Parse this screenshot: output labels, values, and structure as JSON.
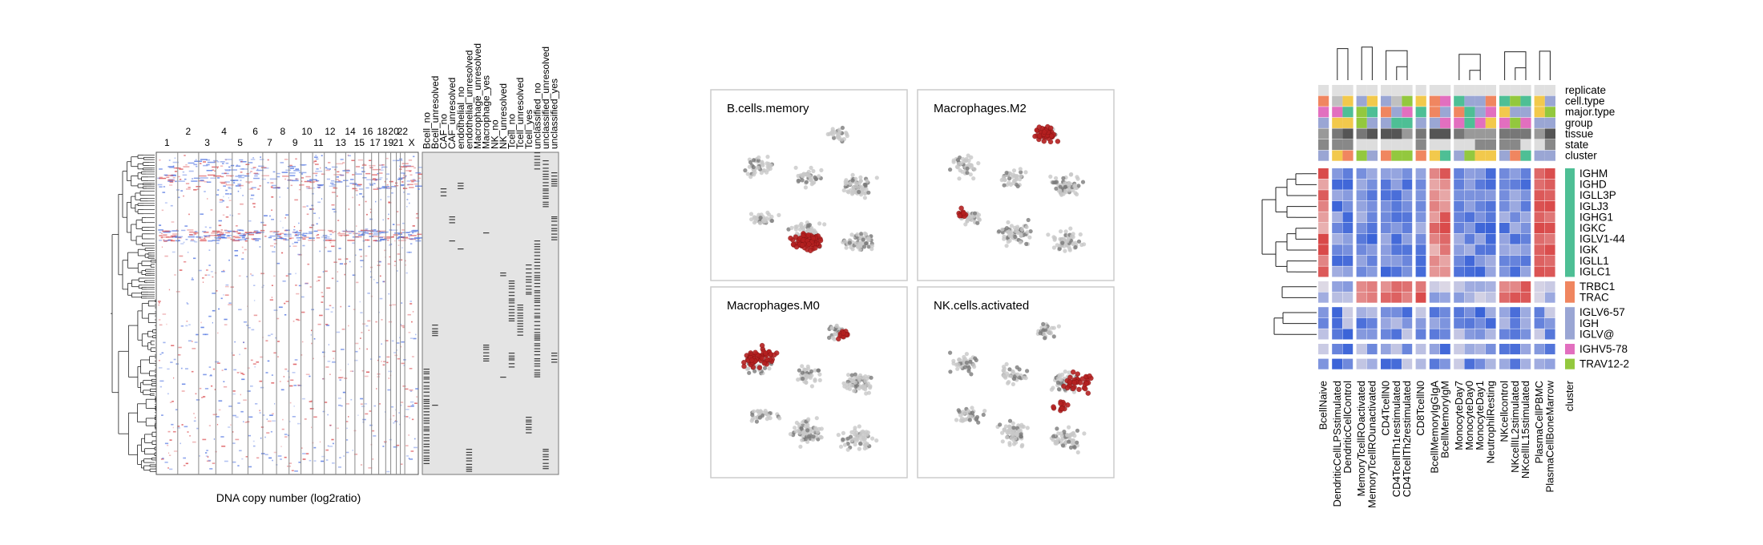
{
  "chart_data": [
    {
      "type": "heatmap",
      "xlabel": "DNA copy number  (log2ratio)",
      "chromosomes_odd": [
        "1",
        "3",
        "5",
        "7",
        "9",
        "11",
        "13",
        "15",
        "17",
        "19",
        "21"
      ],
      "chromosomes_even": [
        "2",
        "4",
        "6",
        "8",
        "10",
        "12",
        "14",
        "16",
        "18",
        "20",
        "22",
        "X"
      ],
      "chromosomes": [
        "1",
        "2",
        "3",
        "4",
        "5",
        "6",
        "7",
        "8",
        "9",
        "10",
        "11",
        "12",
        "13",
        "14",
        "15",
        "16",
        "17",
        "18",
        "19",
        "20",
        "21",
        "22",
        "X"
      ],
      "annotation_columns": [
        "Bcell_no",
        "Bcell_unresolved",
        "CAF_no",
        "CAF_unresolved",
        "endothelial_no",
        "endothelial_unresolved",
        "Macrophage_unresolved",
        "Macrophage_yes",
        "NK_no",
        "NK_unresolved",
        "Tcell_no",
        "Tcell_unresolved",
        "Tcell_yes",
        "unclassified_no",
        "unclassified_unresolved",
        "unclassified_yes"
      ],
      "colors": {
        "gain": "#d9474b",
        "loss": "#4a6fe0",
        "annotation_bg": "#e4e4e4",
        "annotation_mark": "#3a3a3a"
      }
    },
    {
      "type": "scatter",
      "panels": [
        {
          "title": "B.cells.memory"
        },
        {
          "title": "Macrophages.M2"
        },
        {
          "title": "Macrophages.M0"
        },
        {
          "title": "NK.cells.activated"
        }
      ],
      "colors": {
        "background_points": "#c8c8c8",
        "mid_points": "#7a7a7a",
        "highlight_points": "#b52020"
      }
    },
    {
      "type": "heatmap",
      "row_annotations": [
        "replicate",
        "cell.type",
        "major.type",
        "group",
        "tissue",
        "state",
        "cluster"
      ],
      "genes": [
        "IGHM",
        "IGHD",
        "IGLL3P",
        "IGLJ3",
        "IGHG1",
        "IGKC",
        "IGLV1-44",
        "IGK",
        "IGLL1",
        "IGLC1",
        "TRBC1",
        "TRAC",
        "IGLV6-57",
        "IGH",
        "IGLV@",
        "IGHV5-78",
        "TRAV12-2"
      ],
      "samples": [
        "BcellNaive",
        "DendriticCellLPSstimulated",
        "DendriticCellControl",
        "MemoryTcellROactivated",
        "MemoryTcellROunactivated",
        "CD4TcellN0",
        "CD4TcellTh1restimulated",
        "CD4TcellTh2restimulated",
        "CD8TcellN0",
        "BcellMemoryIgGIgA",
        "BcellMemoryIgM",
        "MonocyteDay7",
        "MonocyteDay0",
        "MonocyteDay1",
        "NeutrophilResting",
        "NKcellcontrol",
        "NKcellIL2stimulated",
        "NKcellIL15stimulated",
        "PlasmaCellPBMC",
        "PlasmaCellBoneMarrow"
      ],
      "x_extra_label": "cluster",
      "colors": {
        "low": "#3a63d8",
        "mid": "#f1e7e7",
        "high": "#d94848"
      },
      "cluster_colors": {
        "1": "#4ebf95",
        "2": "#f08660",
        "3": "#9aa6d4",
        "4": "#e26fbf",
        "5": "#93c83e"
      }
    }
  ]
}
